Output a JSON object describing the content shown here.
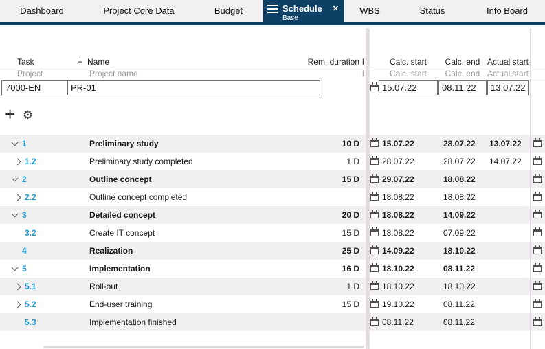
{
  "colors": {
    "accent_navy": "#0e4066",
    "wbs_blue": "#1f9bd4",
    "row_stripe": "#f0f0f0",
    "splitter_mauve": "#e4dbe4"
  },
  "tabs": [
    {
      "label": "Dashboard",
      "active": false
    },
    {
      "label": "Project Core Data",
      "active": false
    },
    {
      "label": "Budget",
      "active": false
    },
    {
      "label": "Schedule",
      "subtitle": "Base",
      "active": true
    },
    {
      "label": "WBS",
      "active": false
    },
    {
      "label": "Status",
      "active": false
    },
    {
      "label": "Info Board",
      "active": false
    }
  ],
  "icons": {
    "menu": "hamburger-icon",
    "close": "✕",
    "add": "+",
    "settings": "gear",
    "calendar": "calendar-outline"
  },
  "grid": {
    "headers": {
      "task": "Task",
      "name_add": "+",
      "name": "Name",
      "rem_duration": "Rem. duration",
      "clipped": "l",
      "calc_start": "Calc. start",
      "calc_end": "Calc. end",
      "actual_start": "Actual start"
    },
    "filter_row": {
      "task": "Project",
      "name": "Project name",
      "clipped": "l",
      "calc_start": "Calc. start",
      "calc_end": "Calc. end",
      "actual_start": "Actual start"
    },
    "project_row": {
      "id": "7000-EN",
      "name": "PR-01",
      "calc_start": "15.07.22",
      "calc_end": "08.11.22",
      "actual_start": "13.07.22"
    }
  },
  "toolbar": {
    "add_label": "+",
    "gear_glyph": "⚙"
  },
  "tasks": [
    {
      "chevron": "down",
      "level": "parent",
      "wbs": "1",
      "name": "Preliminary study",
      "duration": "10 D",
      "calc_start": "15.07.22",
      "calc_end": "28.07.22",
      "actual_start": "13.07.22"
    },
    {
      "chevron": "right",
      "level": "child",
      "wbs": "1.2",
      "name": "Preliminary study completed",
      "duration": "1 D",
      "calc_start": "28.07.22",
      "calc_end": "28.07.22",
      "actual_start": "14.07.22"
    },
    {
      "chevron": "down",
      "level": "parent",
      "wbs": "2",
      "name": "Outline concept",
      "duration": "15 D",
      "calc_start": "29.07.22",
      "calc_end": "18.08.22",
      "actual_start": ""
    },
    {
      "chevron": "right",
      "level": "child",
      "wbs": "2.2",
      "name": "Outline concept completed",
      "duration": "",
      "calc_start": "18.08.22",
      "calc_end": "18.08.22",
      "actual_start": ""
    },
    {
      "chevron": "down",
      "level": "parent",
      "wbs": "3",
      "name": "Detailed concept",
      "duration": "20 D",
      "calc_start": "18.08.22",
      "calc_end": "14.09.22",
      "actual_start": ""
    },
    {
      "chevron": "none",
      "level": "child",
      "wbs": "3.2",
      "name": "Create IT concept",
      "duration": "15 D",
      "calc_start": "18.08.22",
      "calc_end": "07.09.22",
      "actual_start": ""
    },
    {
      "chevron": "none",
      "level": "parent",
      "wbs": "4",
      "name": "Realization",
      "duration": "25 D",
      "calc_start": "14.09.22",
      "calc_end": "18.10.22",
      "actual_start": ""
    },
    {
      "chevron": "down",
      "level": "parent",
      "wbs": "5",
      "name": "Implementation",
      "duration": "16 D",
      "calc_start": "18.10.22",
      "calc_end": "08.11.22",
      "actual_start": ""
    },
    {
      "chevron": "right",
      "level": "child",
      "wbs": "5.1",
      "name": "Roll-out",
      "duration": "1 D",
      "calc_start": "18.10.22",
      "calc_end": "18.10.22",
      "actual_start": ""
    },
    {
      "chevron": "right",
      "level": "child",
      "wbs": "5.2",
      "name": "End-user training",
      "duration": "15 D",
      "calc_start": "19.10.22",
      "calc_end": "08.11.22",
      "actual_start": ""
    },
    {
      "chevron": "none",
      "level": "child",
      "wbs": "5.3",
      "name": "Implementation finished",
      "duration": "",
      "calc_start": "08.11.22",
      "calc_end": "08.11.22",
      "actual_start": ""
    }
  ]
}
